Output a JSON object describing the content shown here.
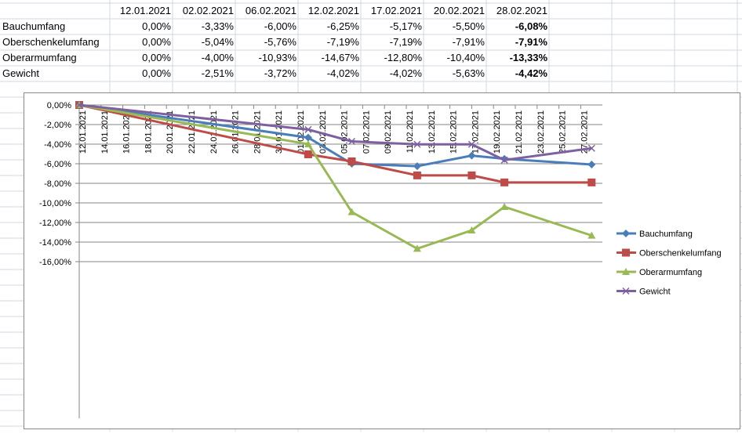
{
  "table": {
    "dates": [
      "12.01.2021",
      "02.02.2021",
      "06.02.2021",
      "12.02.2021",
      "17.02.2021",
      "20.02.2021",
      "28.02.2021"
    ],
    "rows": [
      {
        "label": "Bauchumfang",
        "values": [
          "0,00%",
          "-3,33%",
          "-6,00%",
          "-6,25%",
          "-5,17%",
          "-5,50%",
          "-6,08%"
        ]
      },
      {
        "label": "Oberschenkelumfang",
        "values": [
          "0,00%",
          "-5,04%",
          "-5,76%",
          "-7,19%",
          "-7,19%",
          "-7,91%",
          "-7,91%"
        ]
      },
      {
        "label": "Oberarmumfang",
        "values": [
          "0,00%",
          "-4,00%",
          "-10,93%",
          "-14,67%",
          "-12,80%",
          "-10,40%",
          "-13,33%"
        ]
      },
      {
        "label": "Gewicht",
        "values": [
          "0,00%",
          "-2,51%",
          "-3,72%",
          "-4,02%",
          "-4,02%",
          "-5,63%",
          "-4,42%"
        ]
      }
    ]
  },
  "chart_data": {
    "type": "line",
    "x_days_from_start": [
      0,
      21,
      25,
      31,
      36,
      39,
      47
    ],
    "x": [
      "12.01.2021",
      "02.02.2021",
      "06.02.2021",
      "12.02.2021",
      "17.02.2021",
      "20.02.2021",
      "28.02.2021"
    ],
    "series": [
      {
        "name": "Bauchumfang",
        "color": "#4a7ebb",
        "marker": "diamond",
        "values": [
          0,
          -3.33,
          -6.0,
          -6.25,
          -5.17,
          -5.5,
          -6.08
        ]
      },
      {
        "name": "Oberschenkelumfang",
        "color": "#be4b48",
        "marker": "square",
        "values": [
          0,
          -5.04,
          -5.76,
          -7.19,
          -7.19,
          -7.91,
          -7.91
        ]
      },
      {
        "name": "Oberarmumfang",
        "color": "#98b954",
        "marker": "triangle",
        "values": [
          0,
          -4.0,
          -10.93,
          -14.67,
          -12.8,
          -10.4,
          -13.33
        ]
      },
      {
        "name": "Gewicht",
        "color": "#7d60a0",
        "marker": "x",
        "values": [
          0,
          -2.51,
          -3.72,
          -4.02,
          -4.02,
          -5.63,
          -4.42
        ]
      }
    ],
    "ylim": [
      -16,
      0
    ],
    "yticks": [
      "0,00%",
      "-2,00%",
      "-4,00%",
      "-6,00%",
      "-8,00%",
      "-10,00%",
      "-12,00%",
      "-14,00%",
      "-16,00%"
    ],
    "xticks": [
      "12.01.2021",
      "14.01.2021",
      "16.01.2021",
      "18.01.2021",
      "20.01.2021",
      "22.01.2021",
      "24.01.2021",
      "26.01.2021",
      "28.01.2021",
      "30.01.2021",
      "01.02.2021",
      "03.02.2021",
      "05.02.2021",
      "07.02.2021",
      "09.02.2021",
      "11.02.2021",
      "13.02.2021",
      "15.02.2021",
      "17.02.2021",
      "19.02.2021",
      "21.02.2021",
      "23.02.2021",
      "25.02.2021",
      "27.02.2021"
    ],
    "grid": true,
    "legend": "right"
  }
}
